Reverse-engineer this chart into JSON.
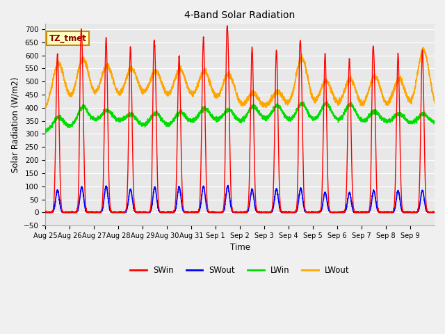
{
  "title": "4-Band Solar Radiation",
  "ylabel": "Solar Radiation (W/m2)",
  "xlabel": "Time",
  "annotation": "TZ_tmet",
  "ylim": [
    -50,
    720
  ],
  "colors": {
    "SWin": "#FF0000",
    "SWout": "#0000FF",
    "LWin": "#00DD00",
    "LWout": "#FFA500"
  },
  "tick_labels": [
    "Aug 25",
    "Aug 26",
    "Aug 27",
    "Aug 28",
    "Aug 29",
    "Aug 30",
    "Aug 31",
    "Sep 1",
    "Sep 2",
    "Sep 3",
    "Sep 4",
    "Sep 5",
    "Sep 6",
    "Sep 7",
    "Sep 8",
    "Sep 9"
  ],
  "swin_peaks": [
    590,
    650,
    680,
    645,
    600,
    595,
    650,
    650,
    620,
    615,
    595,
    590,
    605,
    600,
    610,
    615
  ],
  "swout_peaks": [
    85,
    100,
    100,
    90,
    95,
    95,
    100,
    100,
    90,
    90,
    90,
    75,
    75,
    85,
    85,
    85
  ],
  "lwout_peaks": [
    560,
    575,
    560,
    545,
    545,
    545,
    545,
    540,
    455,
    460,
    590,
    500,
    515,
    520,
    510,
    620
  ],
  "lwout_valleys": [
    385,
    400,
    420,
    420,
    430,
    420,
    420,
    410,
    390,
    390,
    390,
    390,
    390,
    380,
    380,
    380
  ],
  "lwin_base": [
    310,
    325,
    350,
    350,
    330,
    330,
    345,
    350,
    345,
    355,
    350,
    350,
    350,
    345,
    345,
    340
  ],
  "lwin_peaks": [
    355,
    390,
    390,
    385,
    380,
    375,
    395,
    395,
    400,
    410,
    415,
    415,
    415,
    385,
    380,
    375
  ]
}
